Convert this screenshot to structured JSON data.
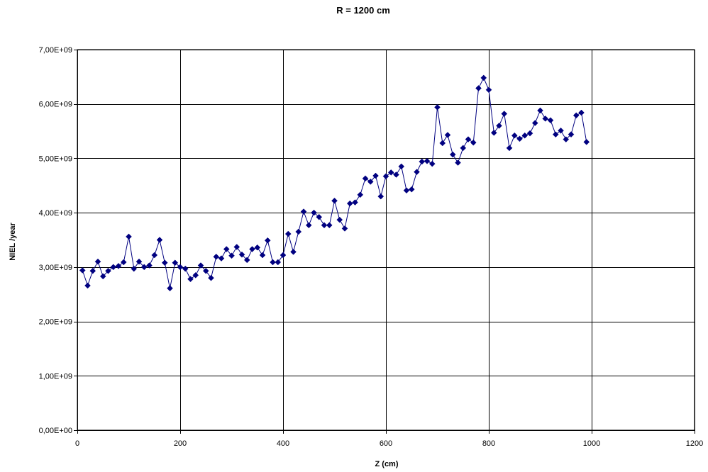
{
  "chart_data": {
    "type": "line",
    "title": "R = 1200 cm",
    "xlabel": "Z (cm)",
    "ylabel": "NIEL /year",
    "xlim": [
      0,
      1200
    ],
    "ylim": [
      0,
      7000000000
    ],
    "xticks": [
      0,
      200,
      400,
      600,
      800,
      1000,
      1200
    ],
    "xtick_labels": [
      "0",
      "200",
      "400",
      "600",
      "800",
      "1000",
      "1200"
    ],
    "yticks": [
      0,
      1000000000,
      2000000000,
      3000000000,
      4000000000,
      5000000000,
      6000000000,
      7000000000
    ],
    "ytick_labels": [
      "0,00E+00",
      "1,00E+09",
      "2,00E+09",
      "3,00E+09",
      "4,00E+09",
      "5,00E+09",
      "6,00E+09",
      "7,00E+09"
    ],
    "grid": true,
    "legend": false,
    "series_color": "#000080",
    "marker": "diamond",
    "x": [
      10,
      20,
      30,
      40,
      50,
      60,
      70,
      80,
      90,
      100,
      110,
      120,
      130,
      140,
      150,
      160,
      170,
      180,
      190,
      200,
      210,
      220,
      230,
      240,
      250,
      260,
      270,
      280,
      290,
      300,
      310,
      320,
      330,
      340,
      350,
      360,
      370,
      380,
      390,
      400,
      410,
      420,
      430,
      440,
      450,
      460,
      470,
      480,
      490,
      500,
      510,
      520,
      530,
      540,
      550,
      560,
      570,
      580,
      590,
      600,
      610,
      620,
      630,
      640,
      650,
      660,
      670,
      680,
      690,
      700,
      710,
      720,
      730,
      740,
      750,
      760,
      770,
      780,
      790,
      800,
      810,
      820,
      830,
      840,
      850,
      860,
      870,
      880,
      890,
      900,
      910,
      920,
      930,
      940,
      950,
      960,
      970,
      980,
      990
    ],
    "y": [
      2940000000,
      2660000000,
      2930000000,
      3100000000,
      2830000000,
      2930000000,
      3000000000,
      3020000000,
      3090000000,
      3560000000,
      2970000000,
      3100000000,
      3000000000,
      3030000000,
      3220000000,
      3500000000,
      3080000000,
      2610000000,
      3080000000,
      3000000000,
      2970000000,
      2780000000,
      2850000000,
      3030000000,
      2930000000,
      2800000000,
      3190000000,
      3160000000,
      3330000000,
      3210000000,
      3370000000,
      3230000000,
      3130000000,
      3330000000,
      3360000000,
      3220000000,
      3490000000,
      3090000000,
      3090000000,
      3220000000,
      3610000000,
      3280000000,
      3650000000,
      4020000000,
      3770000000,
      4000000000,
      3920000000,
      3770000000,
      3770000000,
      4220000000,
      3870000000,
      3710000000,
      4170000000,
      4190000000,
      4330000000,
      4630000000,
      4570000000,
      4680000000,
      4300000000,
      4670000000,
      4740000000,
      4700000000,
      4850000000,
      4410000000,
      4430000000,
      4750000000,
      4940000000,
      4950000000,
      4900000000,
      5940000000,
      5280000000,
      5430000000,
      5070000000,
      4920000000,
      5190000000,
      5350000000,
      5290000000,
      6290000000,
      6480000000,
      6260000000,
      5470000000,
      5600000000,
      5820000000,
      5190000000,
      5420000000,
      5360000000,
      5420000000,
      5460000000,
      5650000000,
      5880000000,
      5730000000,
      5700000000,
      5440000000,
      5510000000,
      5350000000,
      5440000000,
      5790000000,
      5840000000,
      5300000000
    ]
  }
}
